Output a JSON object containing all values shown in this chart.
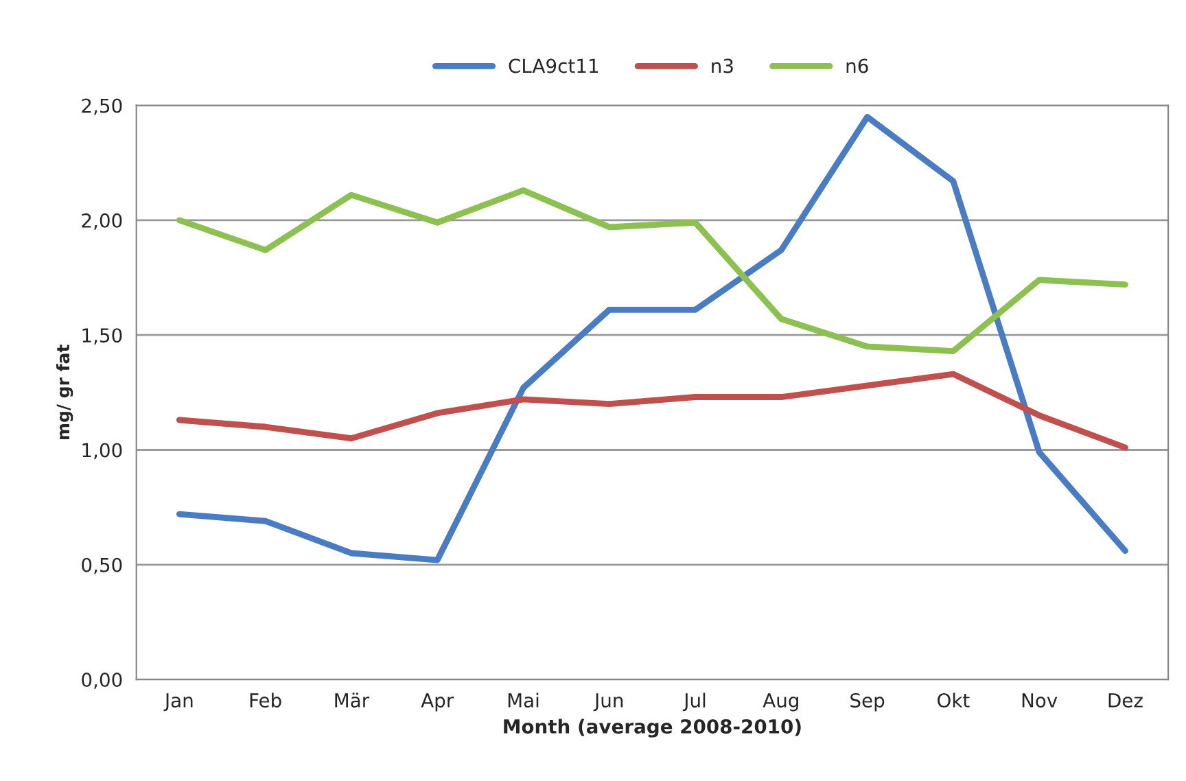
{
  "chart_data": {
    "type": "line",
    "xlabel": "Month (average 2008-2010)",
    "ylabel": "mg/ gr fat",
    "categories": [
      "Jan",
      "Feb",
      "Mär",
      "Apr",
      "Mai",
      "Jun",
      "Jul",
      "Aug",
      "Sep",
      "Okt",
      "Nov",
      "Dez"
    ],
    "series": [
      {
        "name": "CLA9ct11",
        "color": "#4a7cc4",
        "values": [
          0.72,
          0.69,
          0.55,
          0.52,
          1.27,
          1.61,
          1.61,
          1.87,
          2.45,
          2.17,
          0.99,
          0.56
        ]
      },
      {
        "name": "n3",
        "color": "#c0504d",
        "values": [
          1.13,
          1.1,
          1.05,
          1.16,
          1.22,
          1.2,
          1.23,
          1.23,
          1.28,
          1.33,
          1.15,
          1.01
        ]
      },
      {
        "name": "n6",
        "color": "#8cc152",
        "values": [
          2.0,
          1.87,
          2.11,
          1.99,
          2.13,
          1.97,
          1.99,
          1.57,
          1.45,
          1.43,
          1.74,
          1.72
        ]
      }
    ],
    "ylim": [
      0,
      2.5
    ],
    "yticks": [
      {
        "value": 0,
        "label": "0,00"
      },
      {
        "value": 0.5,
        "label": "0,50"
      },
      {
        "value": 1,
        "label": "1,00"
      },
      {
        "value": 1.5,
        "label": "1,50"
      },
      {
        "value": 2,
        "label": "2,00"
      },
      {
        "value": 2.5,
        "label": "2,50"
      }
    ],
    "grid": "y",
    "legend": "top",
    "marker": "none",
    "line_style": "solid"
  }
}
